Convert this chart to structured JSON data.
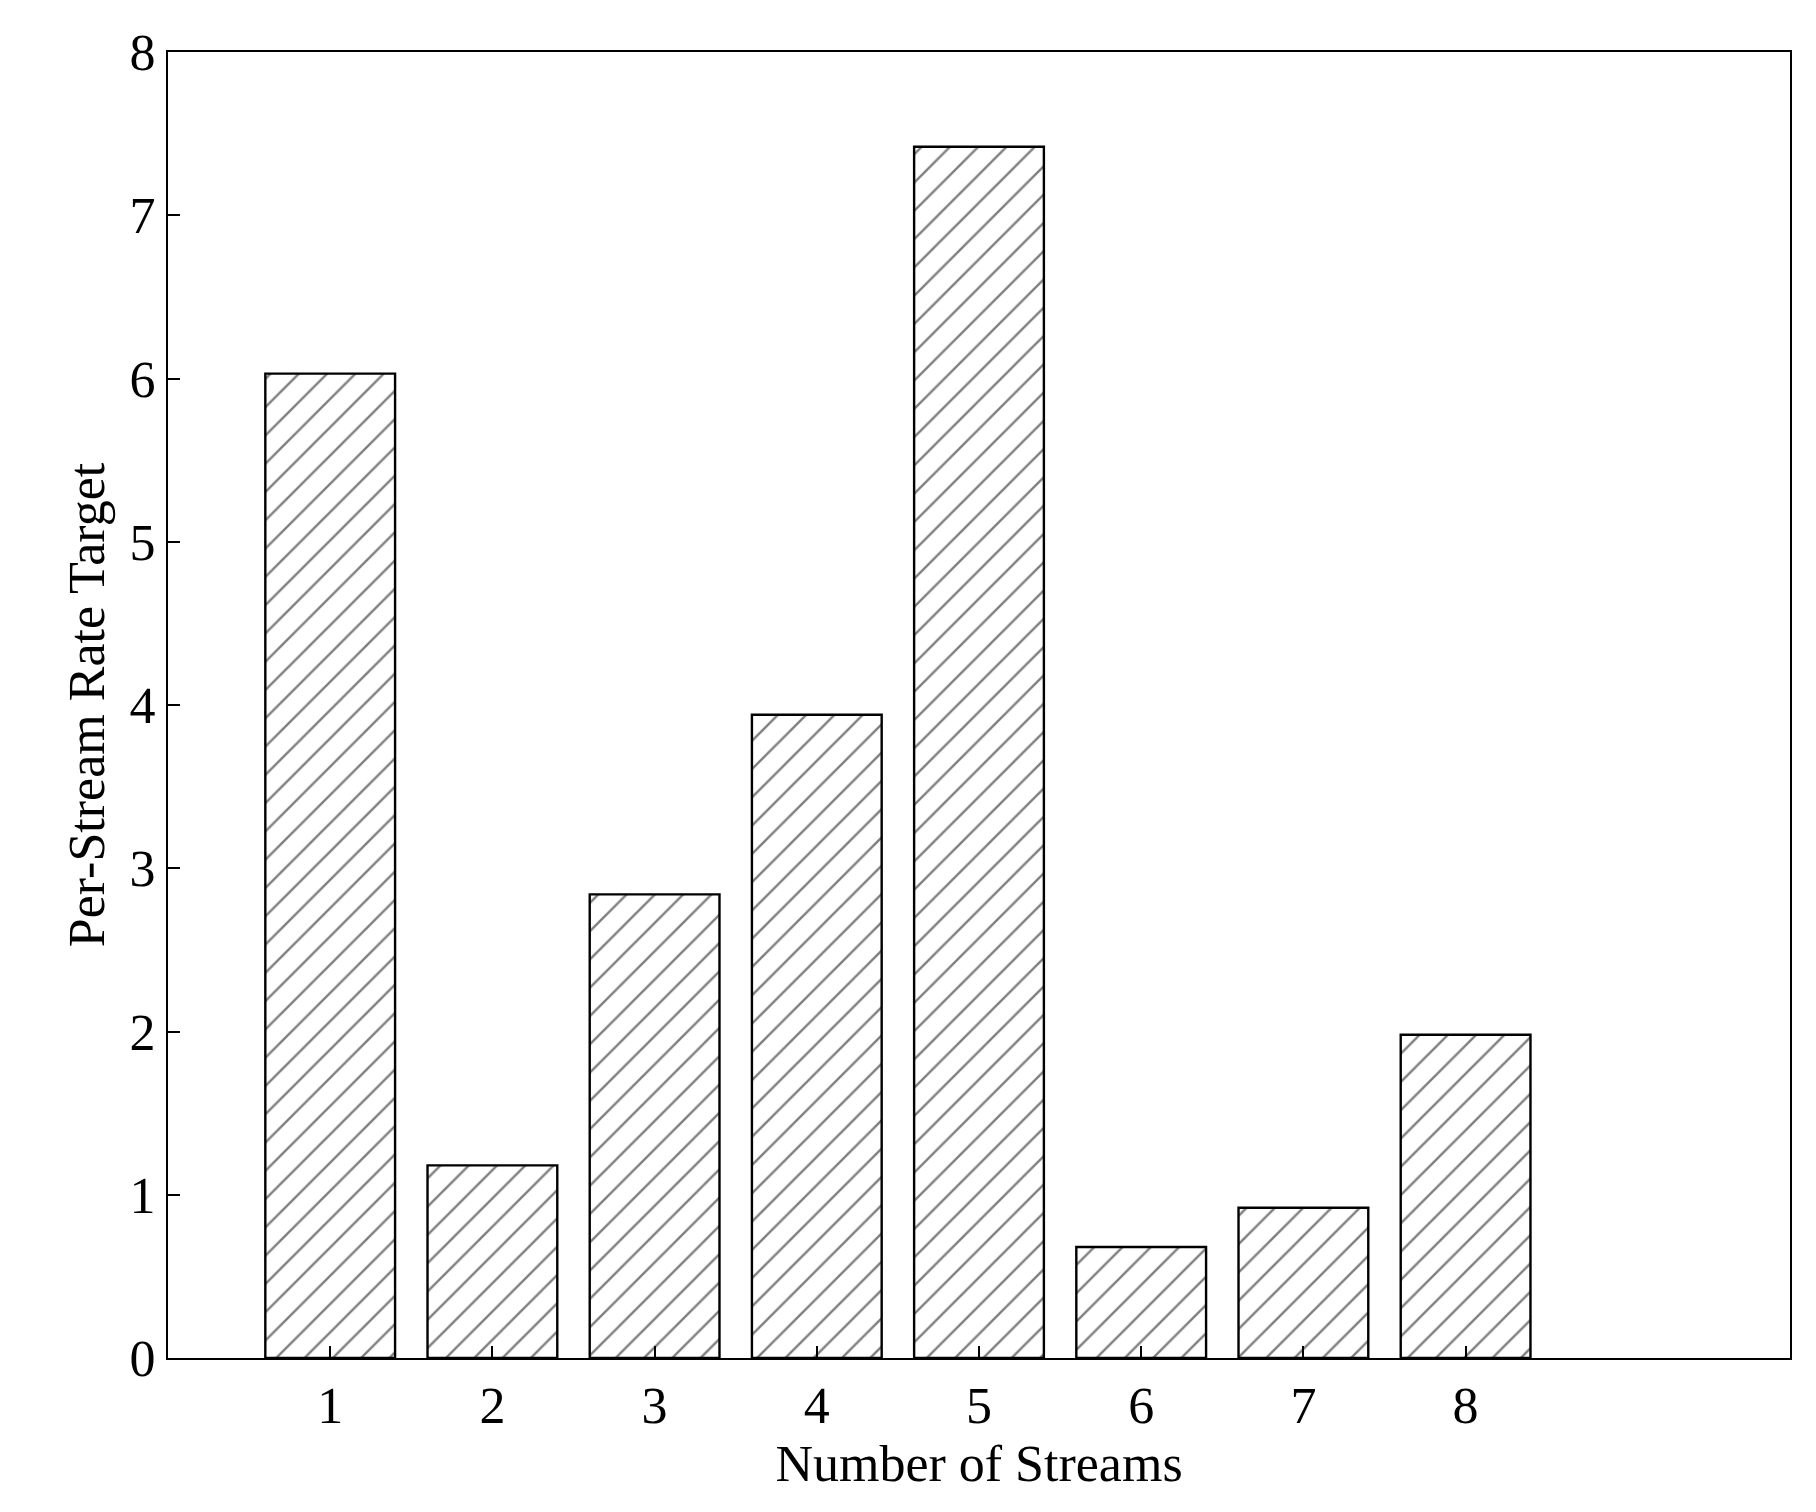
{
  "chart_data": {
    "type": "bar",
    "xlabel": "Number of Streams",
    "ylabel": "Per-Stream Rate Target",
    "x": [
      1,
      2,
      3,
      4,
      5,
      6,
      7,
      8
    ],
    "values": [
      6.03,
      1.18,
      2.84,
      3.94,
      7.42,
      0.68,
      0.92,
      1.98
    ],
    "color": "#000000",
    "xlim": [
      0,
      10
    ],
    "xticks": [
      1,
      2,
      3,
      4,
      5,
      6,
      7,
      8
    ],
    "ylim": [
      0,
      8
    ],
    "yticks": [
      0,
      1,
      2,
      3,
      4,
      5,
      6,
      7,
      8
    ]
  }
}
